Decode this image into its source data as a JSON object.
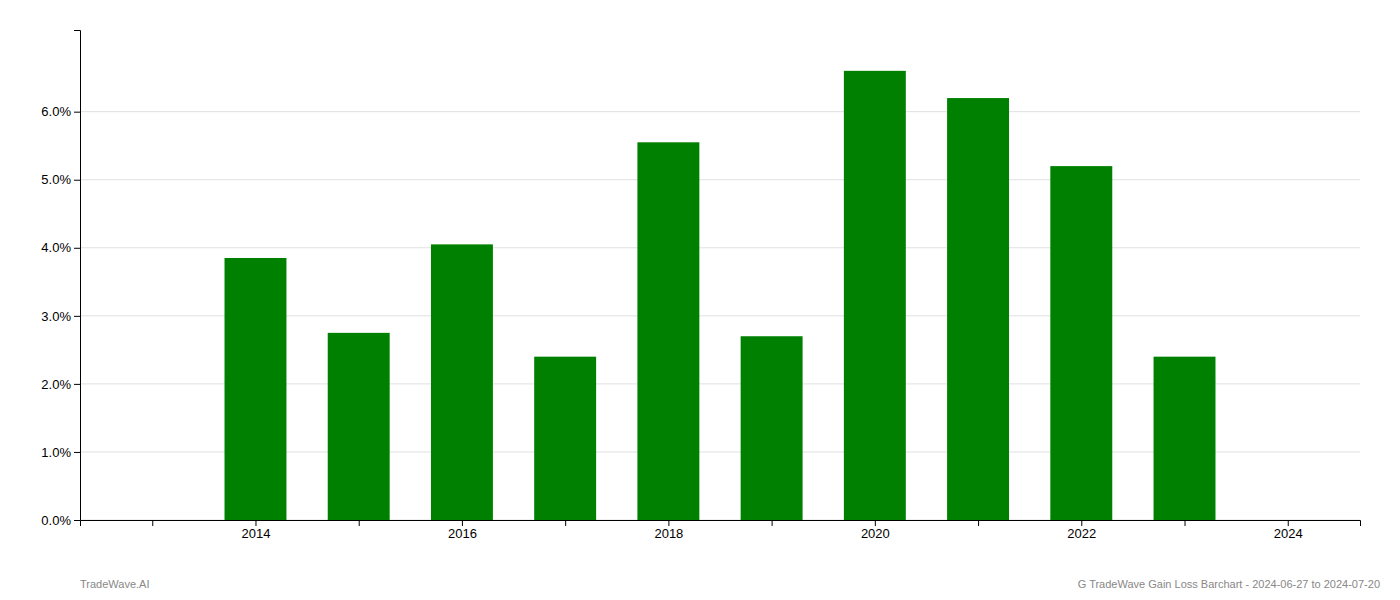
{
  "chart_data": {
    "type": "bar",
    "x": [
      2014,
      2015,
      2016,
      2017,
      2018,
      2019,
      2020,
      2021,
      2022,
      2023
    ],
    "values": [
      0.0385,
      0.0275,
      0.0405,
      0.024,
      0.0555,
      0.027,
      0.066,
      0.062,
      0.052,
      0.024
    ],
    "color": "#008000",
    "xlim": [
      2012.3,
      2024.7
    ],
    "xticks": [
      {
        "value": 2013,
        "label": null
      },
      2014,
      {
        "value": 2015,
        "label": null
      },
      2016,
      {
        "value": 2017,
        "label": null
      },
      2018,
      {
        "value": 2019,
        "label": null
      },
      2020,
      {
        "value": 2021,
        "label": null
      },
      2022,
      {
        "value": 2023,
        "label": null
      },
      2024
    ],
    "ylim": [
      0,
      0.072
    ],
    "yticks": [
      {
        "value": 0.0,
        "label": "0.0%"
      },
      {
        "value": 0.01,
        "label": "1.0%"
      },
      {
        "value": 0.02,
        "label": "2.0%"
      },
      {
        "value": 0.03,
        "label": "3.0%"
      },
      {
        "value": 0.04,
        "label": "4.0%"
      },
      {
        "value": 0.05,
        "label": "5.0%"
      },
      {
        "value": 0.06,
        "label": "6.0%"
      }
    ],
    "grid": true,
    "annotations": [
      "TradeWave.AI",
      "G TradeWave Gain Loss Barchart - 2024-06-27 to 2024-07-20"
    ]
  }
}
